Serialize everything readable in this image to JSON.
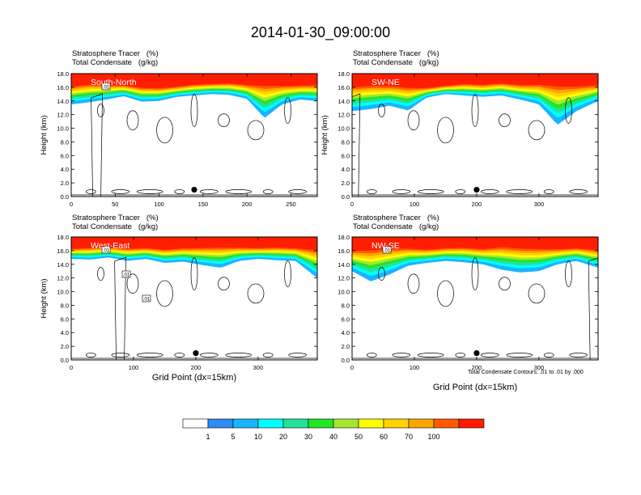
{
  "title": "2014-01-30_09:00:00",
  "field_labels": {
    "tracer": "Stratosphere Tracer   (%)",
    "condensate": "Total Condensate   (g/kg)"
  },
  "ylabel": "Height (km)",
  "xlabel": "Grid Point (dx=15km)",
  "contour_note": "Total Condensate Contours: .01 to .01 by .000",
  "colorbar": {
    "ticks": [
      "1",
      "5",
      "10",
      "20",
      "30",
      "40",
      "50",
      "60",
      "70",
      "100"
    ],
    "colors": [
      "#ffffff",
      "#2f8cf0",
      "#19b4ff",
      "#00ffff",
      "#22e29a",
      "#22e622",
      "#a6e633",
      "#ffff00",
      "#ffd200",
      "#ffa500",
      "#ff5a00",
      "#ff1e00"
    ]
  },
  "chart_data": [
    {
      "type": "heatmap",
      "panel": "South-North",
      "title": "South-North",
      "xlabel": "",
      "ylabel": "Height (km)",
      "xlim": [
        0,
        280
      ],
      "ylim": [
        0,
        18
      ],
      "xticks": [
        0,
        50,
        100,
        150,
        200,
        250
      ],
      "yticks": [
        0.0,
        2.0,
        4.0,
        6.0,
        8.0,
        10.0,
        12.0,
        14.0,
        16.0,
        18.0
      ],
      "point": {
        "x": 140,
        "y": 1.0
      },
      "tracer_profile": {
        "x": [
          0,
          20,
          40,
          60,
          80,
          100,
          120,
          140,
          160,
          180,
          200,
          220,
          240,
          260,
          280
        ],
        "top_level_km": [
          16.3,
          16.6,
          16.5,
          16.4,
          16.1,
          16.0,
          16.2,
          16.5,
          16.6,
          16.7,
          16.5,
          16.6,
          16.4,
          16.4,
          16.5
        ],
        "bottom_level_km": [
          13.5,
          13.8,
          14.2,
          14.7,
          13.9,
          14.0,
          14.6,
          14.8,
          15.0,
          14.9,
          14.3,
          11.5,
          13.5,
          14.2,
          14.0
        ]
      },
      "contour_labels": [
        ".01"
      ]
    },
    {
      "type": "heatmap",
      "panel": "SW-NE",
      "title": "SW-NE",
      "xlabel": "",
      "ylabel": "Height (km)",
      "xlim": [
        0,
        395
      ],
      "ylim": [
        0,
        18
      ],
      "xticks": [
        0,
        100,
        200,
        300
      ],
      "yticks": [
        0.0,
        2.0,
        4.0,
        6.0,
        8.0,
        10.0,
        12.0,
        14.0,
        16.0,
        18.0
      ],
      "point": {
        "x": 200,
        "y": 1.0
      },
      "tracer_profile": {
        "x": [
          0,
          30,
          60,
          90,
          120,
          150,
          180,
          210,
          240,
          270,
          300,
          330,
          360,
          395
        ],
        "top_level_km": [
          16.3,
          16.5,
          16.4,
          16.2,
          16.0,
          16.3,
          16.6,
          16.5,
          16.7,
          16.5,
          16.6,
          16.6,
          16.4,
          16.5
        ],
        "bottom_level_km": [
          12.5,
          12.8,
          13.3,
          12.6,
          14.5,
          15.0,
          14.8,
          14.6,
          14.8,
          14.2,
          13.5,
          10.5,
          12.5,
          14.0
        ]
      },
      "contour_labels": []
    },
    {
      "type": "heatmap",
      "panel": "West-East",
      "title": "West-East",
      "xlabel": "Grid Point (dx=15km)",
      "ylabel": "Height (km)",
      "xlim": [
        0,
        395
      ],
      "ylim": [
        0,
        18
      ],
      "xticks": [
        0,
        100,
        200,
        300
      ],
      "yticks": [
        0.0,
        2.0,
        4.0,
        6.0,
        8.0,
        10.0,
        12.0,
        14.0,
        16.0,
        18.0
      ],
      "point": {
        "x": 200,
        "y": 1.0
      },
      "tracer_profile": {
        "x": [
          0,
          30,
          60,
          90,
          120,
          150,
          180,
          210,
          240,
          270,
          300,
          330,
          360,
          395
        ],
        "top_level_km": [
          16.4,
          16.5,
          16.6,
          16.4,
          16.5,
          16.3,
          16.5,
          16.6,
          16.7,
          16.6,
          16.5,
          16.6,
          16.5,
          16.4
        ],
        "bottom_level_km": [
          14.8,
          14.7,
          15.0,
          14.5,
          14.8,
          14.2,
          14.4,
          13.9,
          13.5,
          14.5,
          14.8,
          14.6,
          14.5,
          12.0
        ]
      },
      "contour_labels": [
        ".01",
        ".01",
        ".01"
      ]
    },
    {
      "type": "heatmap",
      "panel": "NW-SE",
      "title": "NW-SE",
      "xlabel": "Grid Point (dx=15km)",
      "ylabel": "",
      "xlim": [
        0,
        395
      ],
      "ylim": [
        0,
        18
      ],
      "xticks": [
        0,
        100,
        200,
        300
      ],
      "yticks": [
        0.0,
        2.0,
        4.0,
        6.0,
        8.0,
        10.0,
        12.0,
        14.0,
        16.0,
        18.0
      ],
      "point": {
        "x": 200,
        "y": 1.0
      },
      "tracer_profile": {
        "x": [
          0,
          30,
          60,
          90,
          120,
          150,
          180,
          210,
          240,
          270,
          300,
          330,
          360,
          395
        ],
        "top_level_km": [
          16.2,
          16.4,
          16.6,
          16.5,
          16.3,
          16.5,
          16.6,
          16.4,
          16.8,
          16.6,
          16.5,
          16.4,
          16.5,
          16.3
        ],
        "bottom_level_km": [
          13.0,
          11.5,
          12.5,
          13.8,
          14.2,
          14.5,
          14.3,
          14.0,
          13.2,
          12.8,
          13.0,
          14.0,
          14.5,
          13.5
        ]
      },
      "contour_labels": [
        ".01"
      ]
    }
  ]
}
